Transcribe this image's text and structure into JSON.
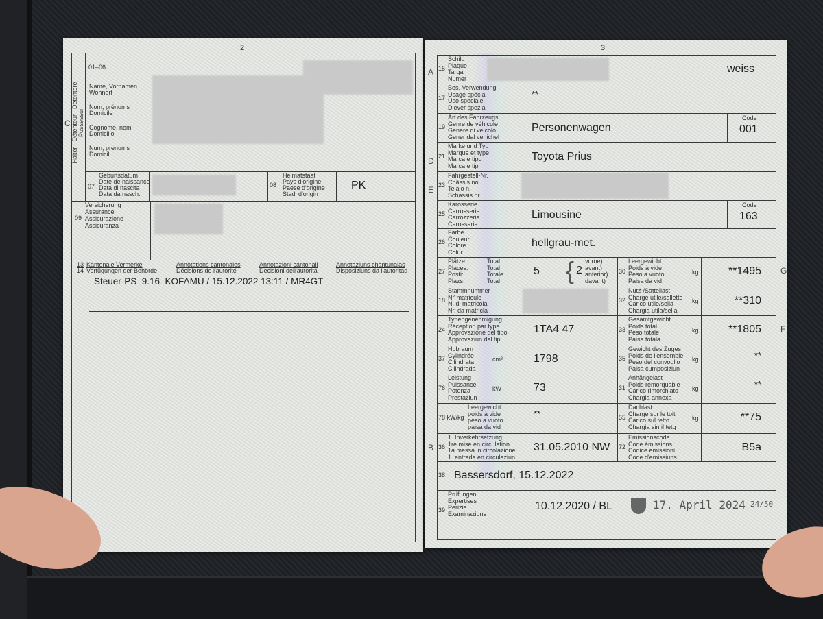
{
  "left_page": {
    "page_number": "2",
    "section_letter": "C",
    "holder_vertical_label": [
      "Halter - Détenteur - Detentore",
      "Possessur"
    ],
    "field_01_06": {
      "number": "01–06",
      "labels": [
        "Name, Vornamen",
        "Wohnort",
        "Nom, prénoms",
        "Domicile",
        "Cognome, nomi",
        "Domicilio",
        "Num, prenums",
        "Domicil"
      ],
      "value": "[redacted]"
    },
    "field_07": {
      "number": "07",
      "labels": [
        "Geburtsdatum",
        "Date de naissance",
        "Data di nascita",
        "Data da nasch."
      ],
      "value": "[redacted]"
    },
    "field_08": {
      "number": "08",
      "labels": [
        "Heimatstaat",
        "Pays d'origine",
        "Paese d'origine",
        "Stadi d'origin"
      ],
      "value": "PK"
    },
    "field_09": {
      "number": "09",
      "labels": [
        "Versicherung",
        "Assurance",
        "Assicurazione",
        "Assicuranza"
      ],
      "value": "[redacted]"
    },
    "annotations": {
      "numbers": [
        "13",
        "14"
      ],
      "headers": [
        [
          "Kantonale Vermerke",
          "Verfügungen der Behörde"
        ],
        [
          "Annotations cantonales",
          "Décisions de l'autorité"
        ],
        [
          "Annotazioni cantonali",
          "Decisioni dell'autorità"
        ],
        [
          "Annotaziuns chantunalas",
          "Disposiziuns da l'autoritad"
        ]
      ],
      "text": "Steuer-PS  9.16  KOFAMU / 15.12.2022 13:11 / MR4GT"
    }
  },
  "right_page": {
    "page_number": "3",
    "side_letters": {
      "A": "A",
      "D": "D",
      "E": "E",
      "G": "G",
      "F": "F",
      "B": "B"
    },
    "code_label": "Code",
    "fields": {
      "f15": {
        "number": "15",
        "labels": [
          "Schild",
          "Plaque",
          "Targa",
          "Numer"
        ],
        "value": "weiss"
      },
      "f17": {
        "number": "17",
        "labels": [
          "Bes. Verwendung",
          "Usage spécial",
          "Uso speciale",
          "Diever spezial"
        ],
        "value": "**"
      },
      "f19": {
        "number": "19",
        "labels": [
          "Art des Fahrzeugs",
          "Genre de véhicule",
          "Genere di veicolo",
          "Gener dal vehichel"
        ],
        "value": "Personenwagen",
        "code": "001"
      },
      "f21": {
        "number": "21",
        "labels": [
          "Marke und Typ",
          "Marque et type",
          "Marca e tipo",
          "Marca e tip"
        ],
        "value": "Toyota Prius"
      },
      "f23": {
        "number": "23",
        "labels": [
          "Fahrgestell-Nr.",
          "Châssis no",
          "Telaio n.",
          "Schassis nr."
        ],
        "value": "[redacted]"
      },
      "f25": {
        "number": "25",
        "labels": [
          "Karosserie",
          "Carrosserie",
          "Carrozzeria",
          "Carossaria"
        ],
        "value": "Limousine",
        "code": "163"
      },
      "f26": {
        "number": "26",
        "labels": [
          "Farbe",
          "Couleur",
          "Colore",
          "Colur"
        ],
        "value": "hellgrau-met."
      },
      "f27": {
        "number": "27",
        "labels": [
          "Plätze:",
          "Places:",
          "Posti:",
          "Plazs:"
        ],
        "totals": [
          "Total",
          "Total",
          "Totale",
          "Total"
        ],
        "value": "5",
        "front_value": "2",
        "front_labels": [
          "vorne)",
          "avant)",
          "anterior)",
          "davant)"
        ]
      },
      "f30": {
        "number": "30",
        "labels": [
          "Leergewicht",
          "Poids à vide",
          "Peso a vuoto",
          "Paisa da vid"
        ],
        "unit": "kg",
        "value": "**1495"
      },
      "f18": {
        "number": "18",
        "labels": [
          "Stammnummer",
          "N° matricule",
          "N. di matricola",
          "Nr. da matricla"
        ],
        "value": "[redacted]"
      },
      "f32": {
        "number": "32",
        "labels": [
          "Nutz-/Sattellast",
          "Charge utile/sellette",
          "Carico utile/sella",
          "Chargia utila/sella"
        ],
        "unit": "kg",
        "value": "**310"
      },
      "f24": {
        "number": "24",
        "labels": [
          "Typengenehmigung",
          "Réception par type",
          "Approvazione del tipo",
          "Approvaziun dal tip"
        ],
        "value": "1TA4 47"
      },
      "f33": {
        "number": "33",
        "labels": [
          "Gesamtgewicht",
          "Poids total",
          "Peso totale",
          "Paisa totala"
        ],
        "unit": "kg",
        "value": "**1805"
      },
      "f37": {
        "number": "37",
        "labels": [
          "Hubraum",
          "Cylindrée",
          "Cilindrata",
          "Cilindrada"
        ],
        "unit": "cm³",
        "value": "1798"
      },
      "f35": {
        "number": "35",
        "labels": [
          "Gewicht des Zuges",
          "Poids de l'ensemble",
          "Peso del convoglio",
          "Paisa cumposiziun"
        ],
        "unit": "kg",
        "value": "**"
      },
      "f76": {
        "number": "76",
        "labels": [
          "Leistung",
          "Puissance",
          "Potenza",
          "Prestaziun"
        ],
        "unit": "kW",
        "value": "73"
      },
      "f31": {
        "number": "31",
        "labels": [
          "Anhängelast",
          "Poids remorquable",
          "Carico rimorchiato",
          "Chargia annexa"
        ],
        "unit": "kg",
        "value": "**"
      },
      "f78": {
        "number": "78 kW/kg",
        "labels": [
          "Leergewicht",
          "poids à vide",
          "peso a vuoto",
          "paisa da vid"
        ],
        "value": "**"
      },
      "f55": {
        "number": "55",
        "labels": [
          "Dachlast",
          "Charge sur le toit",
          "Carico sul tetto",
          "Chargia sin il tetg"
        ],
        "unit": "kg",
        "value": "**75"
      },
      "f36": {
        "number": "36",
        "labels": [
          "1. Inverkehrsetzung",
          "1re mise en circulation",
          "1a messa in circolazione",
          "1. entrada en circulaziun"
        ],
        "value": "31.05.2010 NW"
      },
      "f72": {
        "number": "72",
        "labels": [
          "Emissionscode",
          "Code émissions",
          "Codice emissioni",
          "Code d'emissiuns"
        ],
        "value": "B5a"
      },
      "f38": {
        "number": "38",
        "value": "Bassersdorf, 15.12.2022"
      },
      "f39": {
        "number": "39",
        "labels": [
          "Prüfungen",
          "Expertises",
          "Perizie",
          "Examinaziuns"
        ],
        "value": "10.12.2020 / BL",
        "stamp_date": "17. April 2024",
        "stamp_code": "24/50"
      }
    }
  },
  "colors": {
    "paper": "#e2e4e0",
    "background": "#202226",
    "ink": "#2a2a2a"
  }
}
